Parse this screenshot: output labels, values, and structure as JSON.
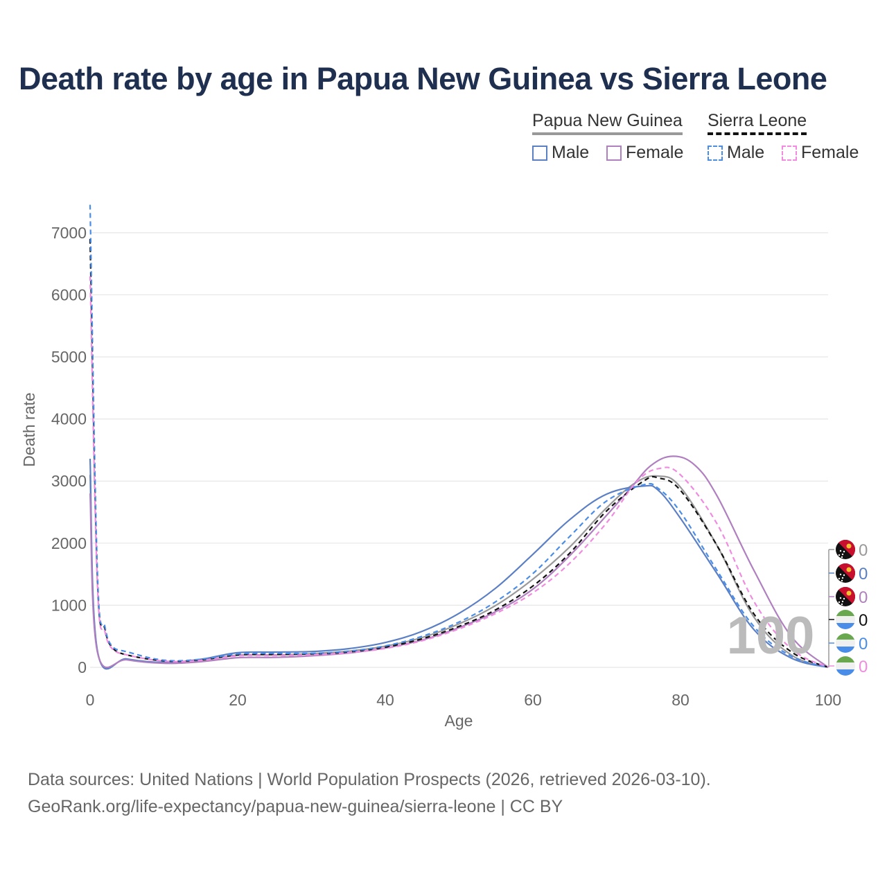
{
  "title": "Death rate by age in Papua New Guinea vs Sierra Leone",
  "legend": {
    "group1": {
      "name": "Papua New Guinea",
      "male": "Male",
      "female": "Female"
    },
    "group2": {
      "name": "Sierra Leone",
      "male": "Male",
      "female": "Female"
    }
  },
  "footer": {
    "line1": "Data sources: United Nations | World Population Prospects (2026, retrieved 2026-03-10).",
    "line2": "GeoRank.org/life-expectancy/papua-new-guinea/sierra-leone | CC BY"
  },
  "chart_data": {
    "type": "line",
    "title": "Death rate by age in Papua New Guinea vs Sierra Leone",
    "xlabel": "Age",
    "ylabel": "Death rate",
    "xlim": [
      0,
      100
    ],
    "ylim": [
      0,
      7400
    ],
    "xticks": [
      "0",
      "20",
      "40",
      "60",
      "80",
      "100"
    ],
    "yticks": [
      "0",
      "1000",
      "2000",
      "3000",
      "4000",
      "5000",
      "6000",
      "7000"
    ],
    "slider_value": "100",
    "series": [
      {
        "name": "Papua New Guinea Total",
        "color": "#999999",
        "dash": "solid",
        "end_label": "0",
        "flag": "png",
        "x": [
          0,
          1,
          5,
          10,
          15,
          20,
          25,
          30,
          35,
          40,
          45,
          50,
          55,
          60,
          65,
          70,
          74,
          77,
          80,
          85,
          90,
          95,
          100
        ],
        "y": [
          3100,
          250,
          130,
          75,
          110,
          195,
          200,
          220,
          260,
          340,
          480,
          700,
          1000,
          1420,
          1940,
          2570,
          2980,
          3080,
          2900,
          1950,
          800,
          200,
          0
        ]
      },
      {
        "name": "Papua New Guinea Male",
        "color": "#5b7fc4",
        "dash": "solid",
        "end_label": "0",
        "flag": "png",
        "x": [
          0,
          1,
          5,
          10,
          15,
          20,
          25,
          30,
          35,
          40,
          45,
          50,
          55,
          60,
          65,
          70,
          75,
          77,
          80,
          85,
          90,
          95,
          100
        ],
        "y": [
          3360,
          260,
          135,
          80,
          130,
          235,
          245,
          255,
          300,
          400,
          580,
          870,
          1280,
          1820,
          2380,
          2790,
          2920,
          2850,
          2400,
          1500,
          600,
          150,
          0
        ]
      },
      {
        "name": "Papua New Guinea Female",
        "color": "#b07fc0",
        "dash": "solid",
        "end_label": "0",
        "flag": "png",
        "x": [
          0,
          1,
          5,
          10,
          15,
          20,
          25,
          30,
          35,
          40,
          45,
          50,
          55,
          60,
          65,
          70,
          73,
          76,
          79,
          82,
          85,
          90,
          95,
          100
        ],
        "y": [
          2800,
          240,
          120,
          65,
          90,
          155,
          160,
          185,
          230,
          310,
          440,
          640,
          900,
          1260,
          1800,
          2450,
          2850,
          3250,
          3400,
          3250,
          2750,
          1550,
          500,
          0
        ]
      },
      {
        "name": "Sierra Leone Total",
        "color": "#111111",
        "dash": "dashed",
        "end_label": "0",
        "flag": "sle",
        "x": [
          0,
          1,
          2,
          3,
          5,
          10,
          15,
          20,
          25,
          30,
          35,
          40,
          45,
          50,
          55,
          60,
          65,
          70,
          75,
          77,
          80,
          85,
          90,
          95,
          100
        ],
        "y": [
          6900,
          1400,
          620,
          320,
          200,
          105,
          120,
          200,
          210,
          215,
          250,
          325,
          460,
          660,
          930,
          1310,
          1840,
          2520,
          3000,
          3050,
          2850,
          1950,
          850,
          250,
          0
        ]
      },
      {
        "name": "Sierra Leone Male",
        "color": "#4a8de8",
        "dash": "dashed",
        "end_label": "0",
        "flag": "sle",
        "x": [
          0,
          1,
          2,
          3,
          5,
          10,
          15,
          20,
          25,
          30,
          35,
          40,
          45,
          50,
          55,
          60,
          65,
          70,
          75,
          77,
          80,
          85,
          90,
          95,
          100
        ],
        "y": [
          7450,
          1500,
          660,
          340,
          250,
          115,
          130,
          215,
          225,
          225,
          260,
          345,
          500,
          730,
          1060,
          1510,
          2110,
          2680,
          2940,
          2880,
          2500,
          1550,
          650,
          180,
          0
        ]
      },
      {
        "name": "Sierra Leone Female",
        "color": "#f08be0",
        "dash": "dashed",
        "end_label": "0",
        "flag": "sle",
        "x": [
          0,
          1,
          2,
          3,
          5,
          10,
          15,
          20,
          25,
          30,
          35,
          40,
          45,
          50,
          55,
          60,
          65,
          70,
          74,
          77,
          80,
          85,
          90,
          95,
          100
        ],
        "y": [
          6300,
          1300,
          580,
          300,
          200,
          100,
          110,
          185,
          190,
          200,
          235,
          305,
          430,
          620,
          870,
          1200,
          1680,
          2330,
          2980,
          3200,
          3100,
          2300,
          1050,
          300,
          0
        ]
      }
    ]
  }
}
